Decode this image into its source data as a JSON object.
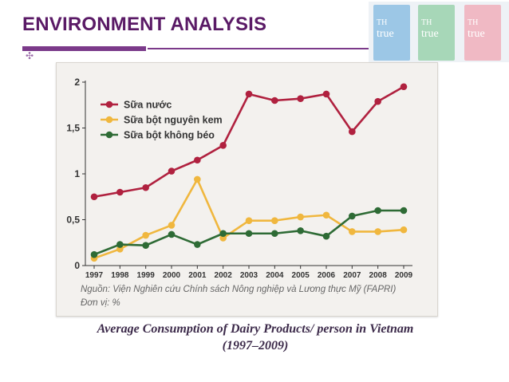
{
  "header": {
    "title": "ENVIRONMENT ANALYSIS",
    "decor_glyph": "✣"
  },
  "branding": {
    "carton_brand_top": "TH",
    "carton_brand_main": "true"
  },
  "caption": {
    "line1": "Average Consumption of Dairy Products/ person in Vietnam",
    "line2": "(1997–2009)"
  },
  "colors": {
    "accent": "#7b3a8a",
    "series1": "#b0213f",
    "series2": "#f0b73e",
    "series3": "#2e6b35"
  },
  "chart_data": {
    "type": "line",
    "title": "",
    "xlabel": "",
    "ylabel": "",
    "categories": [
      "1997",
      "1998",
      "1999",
      "2000",
      "2001",
      "2002",
      "2003",
      "2004",
      "2005",
      "2006",
      "2007",
      "2008",
      "2009"
    ],
    "ylim": [
      0,
      2
    ],
    "yticks": [
      {
        "value": 0,
        "label": "0"
      },
      {
        "value": 0.5,
        "label": "0,5"
      },
      {
        "value": 1,
        "label": "1"
      },
      {
        "value": 1.5,
        "label": "1,5"
      },
      {
        "value": 2,
        "label": "2"
      }
    ],
    "series": [
      {
        "name": "Sữa nước",
        "color": "#b0213f",
        "values": [
          0.75,
          0.8,
          0.85,
          1.03,
          1.15,
          1.31,
          1.87,
          1.8,
          1.82,
          1.87,
          1.46,
          1.79,
          1.95
        ]
      },
      {
        "name": "Sữa bột nguyên kem",
        "color": "#f0b73e",
        "values": [
          0.08,
          0.18,
          0.33,
          0.44,
          0.94,
          0.3,
          0.49,
          0.49,
          0.53,
          0.55,
          0.37,
          0.37,
          0.39
        ]
      },
      {
        "name": "Sữa bột không béo",
        "color": "#2e6b35",
        "values": [
          0.12,
          0.23,
          0.22,
          0.34,
          0.23,
          0.35,
          0.35,
          0.35,
          0.38,
          0.32,
          0.54,
          0.6,
          0.6
        ]
      }
    ],
    "source": "Nguồn: Viện Nghiên cứu Chính sách Nông nghiệp và Lương thực Mỹ (FAPRI)",
    "unit": "Đơn vị: %"
  }
}
